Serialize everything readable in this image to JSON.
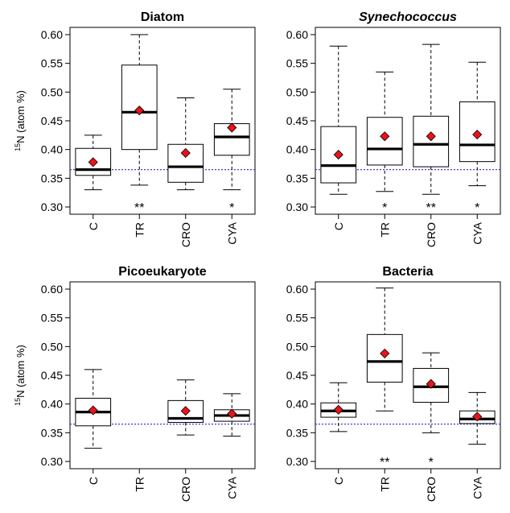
{
  "chart_data": [
    {
      "type": "box",
      "title": "Diatom",
      "title_italic": false,
      "ylabel": "15N (atom %)",
      "ylabel_sup": "15",
      "ylabel_rest": "N (atom %)",
      "ylim": [
        0.3,
        0.6
      ],
      "yticks": [
        "0.30",
        "0.35",
        "0.40",
        "0.45",
        "0.50",
        "0.55",
        "0.60"
      ],
      "reference_line": 0.365,
      "categories": [
        "C",
        "TR",
        "CRO",
        "CYA"
      ],
      "boxes": [
        {
          "min": 0.33,
          "q1": 0.355,
          "median": 0.365,
          "q3": 0.402,
          "max": 0.425,
          "mean": 0.378,
          "sig": ""
        },
        {
          "min": 0.338,
          "q1": 0.4,
          "median": 0.465,
          "q3": 0.547,
          "max": 0.6,
          "mean": 0.468,
          "sig": "**"
        },
        {
          "min": 0.33,
          "q1": 0.343,
          "median": 0.37,
          "q3": 0.409,
          "max": 0.49,
          "mean": 0.394,
          "sig": ""
        },
        {
          "min": 0.33,
          "q1": 0.39,
          "median": 0.422,
          "q3": 0.445,
          "max": 0.505,
          "mean": 0.438,
          "sig": "*"
        }
      ]
    },
    {
      "type": "box",
      "title": "Synechococcus",
      "title_italic": true,
      "ylabel": "",
      "ylabel_sup": "",
      "ylabel_rest": "",
      "ylim": [
        0.3,
        0.6
      ],
      "yticks": [
        "0.30",
        "0.35",
        "0.40",
        "0.45",
        "0.50",
        "0.55",
        "0.60"
      ],
      "reference_line": 0.365,
      "categories": [
        "C",
        "TR",
        "CRO",
        "CYA"
      ],
      "boxes": [
        {
          "min": 0.322,
          "q1": 0.342,
          "median": 0.372,
          "q3": 0.44,
          "max": 0.58,
          "mean": 0.391,
          "sig": ""
        },
        {
          "min": 0.327,
          "q1": 0.373,
          "median": 0.401,
          "q3": 0.456,
          "max": 0.535,
          "mean": 0.423,
          "sig": "*"
        },
        {
          "min": 0.322,
          "q1": 0.37,
          "median": 0.409,
          "q3": 0.458,
          "max": 0.583,
          "mean": 0.423,
          "sig": "**"
        },
        {
          "min": 0.337,
          "q1": 0.379,
          "median": 0.408,
          "q3": 0.483,
          "max": 0.552,
          "mean": 0.426,
          "sig": "*"
        }
      ]
    },
    {
      "type": "box",
      "title": "Picoeukaryote",
      "title_italic": false,
      "ylabel": "15N (atom %)",
      "ylabel_sup": "15",
      "ylabel_rest": "N (atom %)",
      "ylim": [
        0.3,
        0.6
      ],
      "yticks": [
        "0.30",
        "0.35",
        "0.40",
        "0.45",
        "0.50",
        "0.55",
        "0.60"
      ],
      "reference_line": 0.365,
      "categories": [
        "C",
        "TR",
        "CRO",
        "CYA"
      ],
      "boxes": [
        {
          "min": 0.323,
          "q1": 0.362,
          "median": 0.386,
          "q3": 0.41,
          "max": 0.46,
          "mean": 0.389,
          "sig": ""
        },
        null,
        {
          "min": 0.346,
          "q1": 0.368,
          "median": 0.375,
          "q3": 0.406,
          "max": 0.442,
          "mean": 0.388,
          "sig": ""
        },
        {
          "min": 0.344,
          "q1": 0.37,
          "median": 0.38,
          "q3": 0.39,
          "max": 0.418,
          "mean": 0.383,
          "sig": ""
        }
      ]
    },
    {
      "type": "box",
      "title": "Bacteria",
      "title_italic": false,
      "ylabel": "",
      "ylabel_sup": "",
      "ylabel_rest": "",
      "ylim": [
        0.3,
        0.6
      ],
      "yticks": [
        "0.30",
        "0.35",
        "0.40",
        "0.45",
        "0.50",
        "0.55",
        "0.60"
      ],
      "reference_line": 0.365,
      "categories": [
        "C",
        "TR",
        "CRO",
        "CYA"
      ],
      "boxes": [
        {
          "min": 0.352,
          "q1": 0.377,
          "median": 0.388,
          "q3": 0.402,
          "max": 0.437,
          "mean": 0.39,
          "sig": ""
        },
        {
          "min": 0.388,
          "q1": 0.438,
          "median": 0.474,
          "q3": 0.521,
          "max": 0.602,
          "mean": 0.488,
          "sig": "**"
        },
        {
          "min": 0.35,
          "q1": 0.403,
          "median": 0.43,
          "q3": 0.462,
          "max": 0.489,
          "mean": 0.435,
          "sig": "*"
        },
        {
          "min": 0.33,
          "q1": 0.366,
          "median": 0.374,
          "q3": 0.388,
          "max": 0.42,
          "mean": 0.378,
          "sig": ""
        }
      ]
    }
  ],
  "colors": {
    "mean_marker": "#e8141a",
    "reference_line": "#3c3cdc",
    "axis": "#000000"
  }
}
